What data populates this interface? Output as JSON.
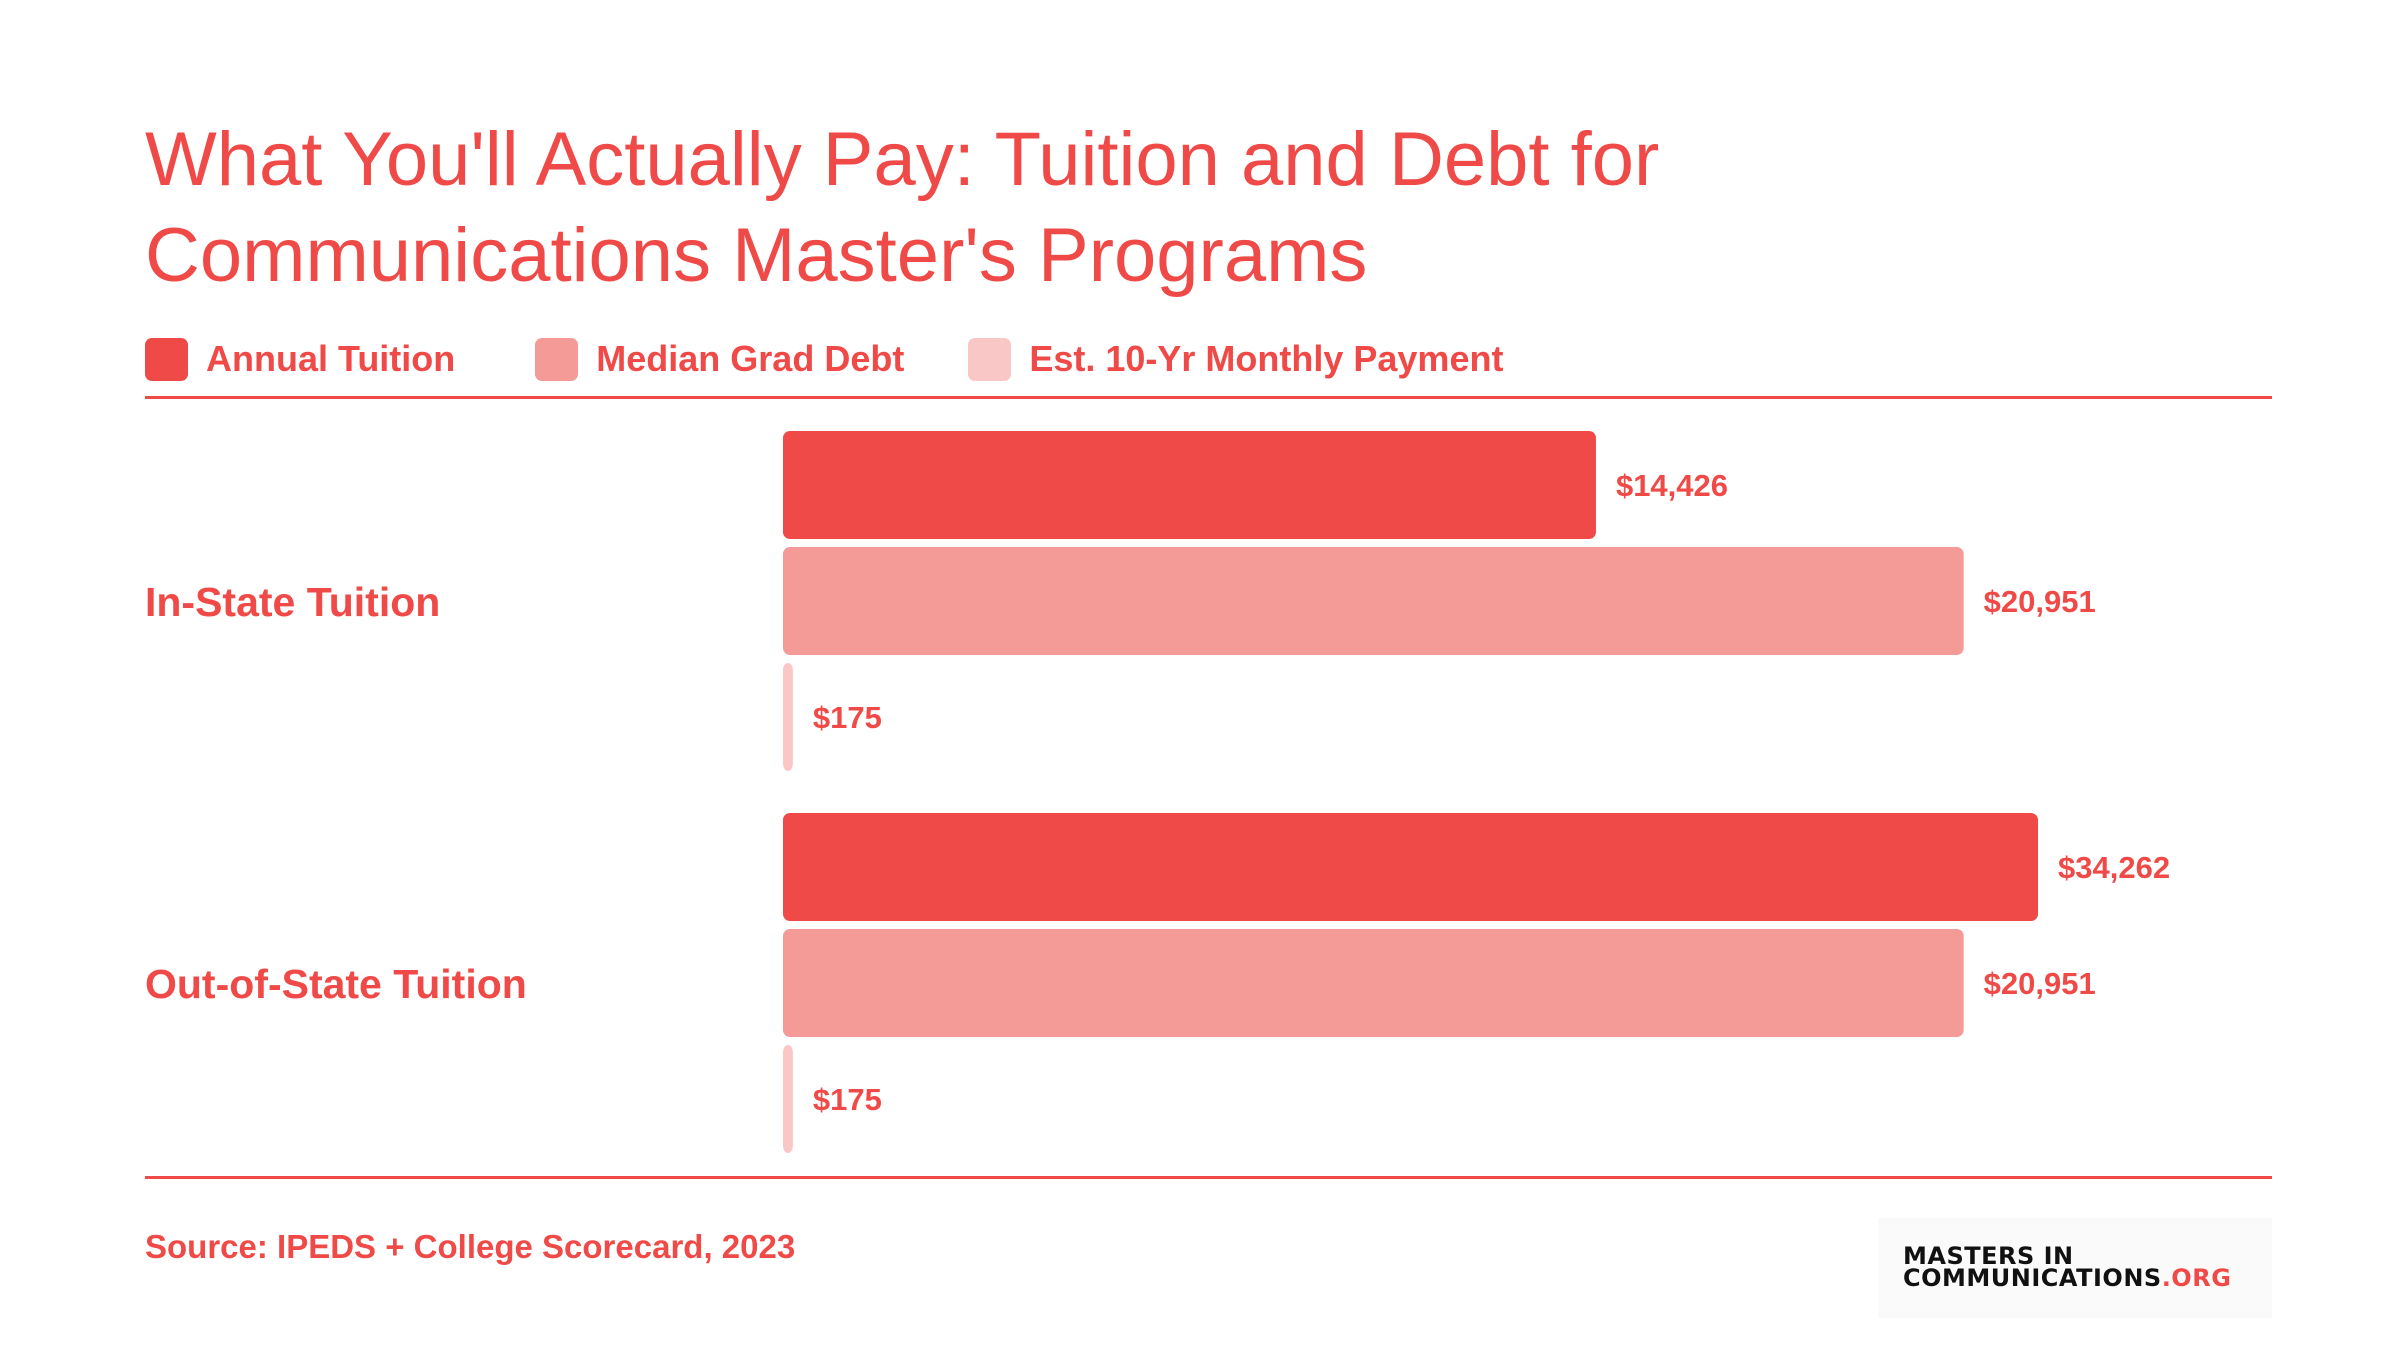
{
  "colors": {
    "accent": "#ef4a47",
    "annual_tuition": "#ef4a47",
    "median_grad_debt": "#f49b98",
    "monthly_payment": "#f9c7c6"
  },
  "source": "Source: IPEDS + College Scorecard, 2023",
  "logo": {
    "line1": "MASTERS IN",
    "line2_main": "COMMUNICATIONS",
    "line2_suffix": ".ORG"
  },
  "chart_data": {
    "type": "bar",
    "orientation": "horizontal",
    "title": "What You'll Actually Pay: Tuition and Debt for Communications Master's Programs",
    "legend_position": "top",
    "grid": false,
    "categories": [
      "In-State Tuition",
      "Out-of-State Tuition"
    ],
    "series": [
      {
        "name": "Annual Tuition",
        "color": "#ef4a47",
        "values": [
          14426,
          34262
        ],
        "labels": [
          "$14,426",
          "$34,262"
        ]
      },
      {
        "name": "Median Grad Debt",
        "color": "#f49b98",
        "values": [
          20951,
          20951
        ],
        "labels": [
          "$20,951",
          "$20,951"
        ]
      },
      {
        "name": "Est. 10-Yr Monthly Payment",
        "color": "#f9c7c6",
        "values": [
          175,
          175
        ],
        "labels": [
          "$175",
          "$175"
        ]
      }
    ]
  }
}
